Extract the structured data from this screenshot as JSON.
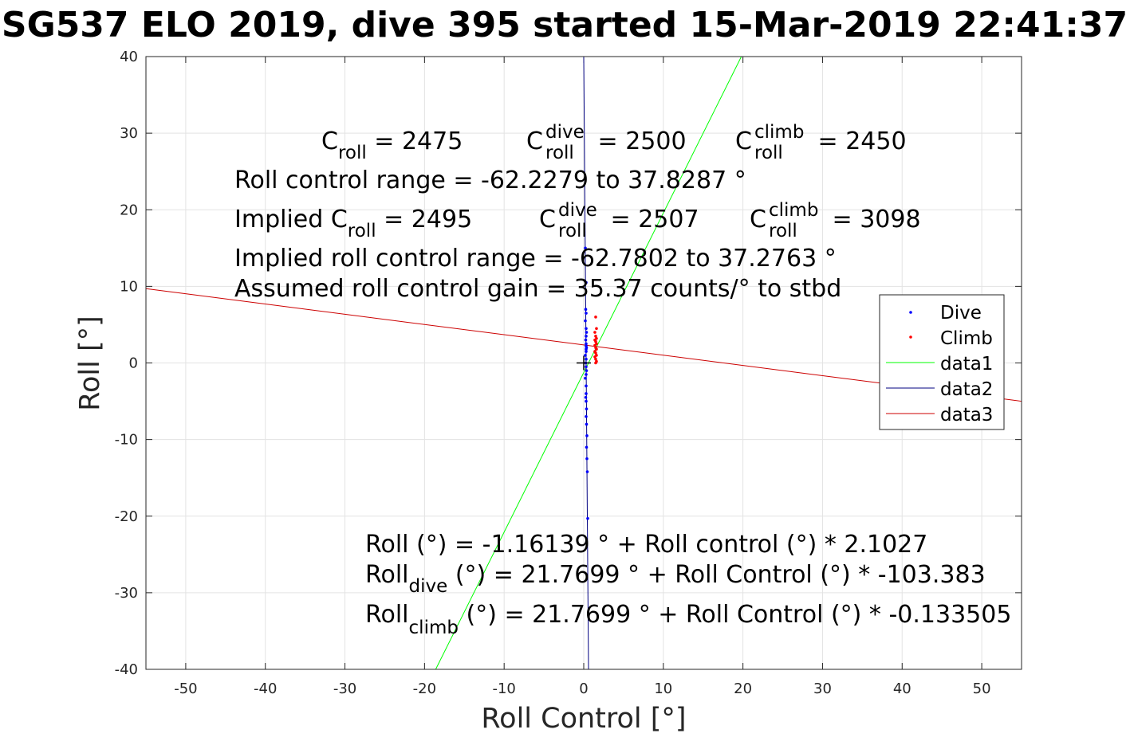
{
  "title": "SG537 ELO 2019, dive 395 started 15-Mar-2019 22:41:37",
  "chart_data": {
    "type": "scatter",
    "xlabel": "Roll Control [°]",
    "ylabel": "Roll [°]",
    "xlim": [
      -55,
      55
    ],
    "ylim": [
      -40,
      40
    ],
    "xticks": [
      -50,
      -40,
      -30,
      -20,
      -10,
      0,
      10,
      20,
      30,
      40,
      50
    ],
    "yticks": [
      40,
      30,
      20,
      10,
      0,
      -10,
      -20,
      -30,
      -40
    ],
    "grid": true,
    "legend_position": "right",
    "colors": {
      "dive": "#0000ff",
      "climb": "#ff0000",
      "data1": "#00ff00",
      "data2": "#000080",
      "data3": "#cc0000",
      "origin_marker": "#000000"
    },
    "series": [
      {
        "name": "Dive",
        "kind": "points",
        "x": [
          0.2,
          0.3,
          0.25,
          0.3,
          0.2,
          0.3,
          0.35,
          0.3,
          0.25,
          0.3,
          0.35,
          0.3,
          0.2,
          0.3,
          0.25,
          0.3,
          0.35,
          0.3,
          0.2,
          0.3,
          0.3,
          0.25,
          0.3,
          0.35,
          0.3,
          0.35,
          0.4,
          0.35,
          0.4,
          0.45,
          0.5,
          0.3,
          0.3
        ],
        "y": [
          15.0,
          10.5,
          7.0,
          6.5,
          5.5,
          4.5,
          4.0,
          3.5,
          3.0,
          2.5,
          2.0,
          1.5,
          1.0,
          0.5,
          0.0,
          -0.5,
          -1.0,
          -1.5,
          -2.0,
          -3.0,
          -4.0,
          -4.5,
          -5.0,
          -6.0,
          -7.0,
          -8.0,
          -9.5,
          -11.0,
          -12.5,
          -14.2,
          -20.3,
          2.2,
          1.8
        ]
      },
      {
        "name": "Climb",
        "kind": "points",
        "x": [
          1.5,
          1.6,
          1.4,
          1.5,
          1.6,
          1.4,
          1.5,
          1.6,
          1.4,
          1.5,
          1.6,
          1.4,
          1.5,
          1.6,
          1.4,
          1.5,
          1.6,
          1.5
        ],
        "y": [
          6.0,
          4.5,
          4.0,
          3.5,
          3.2,
          3.0,
          2.8,
          2.5,
          2.3,
          2.0,
          1.8,
          1.5,
          1.3,
          1.0,
          0.8,
          0.5,
          0.2,
          0.0
        ]
      },
      {
        "name": "data1",
        "kind": "line",
        "x": [
          -18.6,
          19.8
        ],
        "y": [
          -40,
          40
        ]
      },
      {
        "name": "data2",
        "kind": "line",
        "x": [
          0.6,
          0.0
        ],
        "y": [
          -40,
          40
        ]
      },
      {
        "name": "data3",
        "kind": "line",
        "x": [
          -55,
          55
        ],
        "y": [
          9.7,
          -5.0
        ]
      }
    ],
    "origin_marker": {
      "x": 0,
      "y": 0
    },
    "annotations": {
      "c_roll": {
        "base": "C",
        "sub": "roll",
        "rest": " = 2475"
      },
      "c_roll_dive": {
        "base": "C",
        "sup": "dive",
        "sub": "roll",
        "rest": " = 2500"
      },
      "c_roll_climb": {
        "base": "C",
        "sup": "climb",
        "sub": "roll",
        "rest": " = 2450"
      },
      "roll_control_range": "Roll control range = -62.2279 to 37.8287 °",
      "implied_c_roll": {
        "base": "Implied C",
        "sub": "roll",
        "rest": " = 2495"
      },
      "implied_c_roll_dive": {
        "base": "C",
        "sup": "dive",
        "sub": "roll",
        "rest": " = 2507"
      },
      "implied_c_roll_climb": {
        "base": "C",
        "sup": "climb",
        "sub": "roll",
        "rest": " = 3098"
      },
      "implied_range": "Implied roll control range = -62.7802 to 37.2763 °",
      "gain": "Assumed roll control gain = 35.37 counts/° to stbd",
      "fit_all": "Roll (°) = -1.16139 ° + Roll control (°) * 2.1027",
      "fit_dive": {
        "base": "Roll",
        "sub": "dive",
        "rest": " (°) = 21.7699 ° + Roll Control (°) * -103.383"
      },
      "fit_climb": {
        "base": "Roll",
        "sub": "climb",
        "rest": " (°) = 21.7699 ° + Roll Control (°) * -0.133505"
      }
    }
  }
}
